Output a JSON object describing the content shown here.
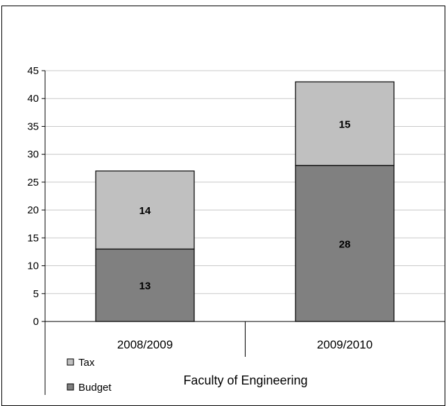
{
  "chart_data": {
    "type": "bar",
    "stacked": true,
    "categories": [
      "2008/2009",
      "2009/2010"
    ],
    "series": [
      {
        "name": "Budget",
        "values": [
          13,
          28
        ],
        "color": "#808080"
      },
      {
        "name": "Tax",
        "values": [
          14,
          15
        ],
        "color": "#c0c0c0"
      }
    ],
    "ylim": [
      0,
      45
    ],
    "yticks": [
      0,
      5,
      10,
      15,
      20,
      25,
      30,
      35,
      40,
      45
    ],
    "group_label": "Faculty of Engineering",
    "grid": true,
    "legend": "bottom-left",
    "legend_order": [
      "Tax",
      "Budget"
    ]
  }
}
